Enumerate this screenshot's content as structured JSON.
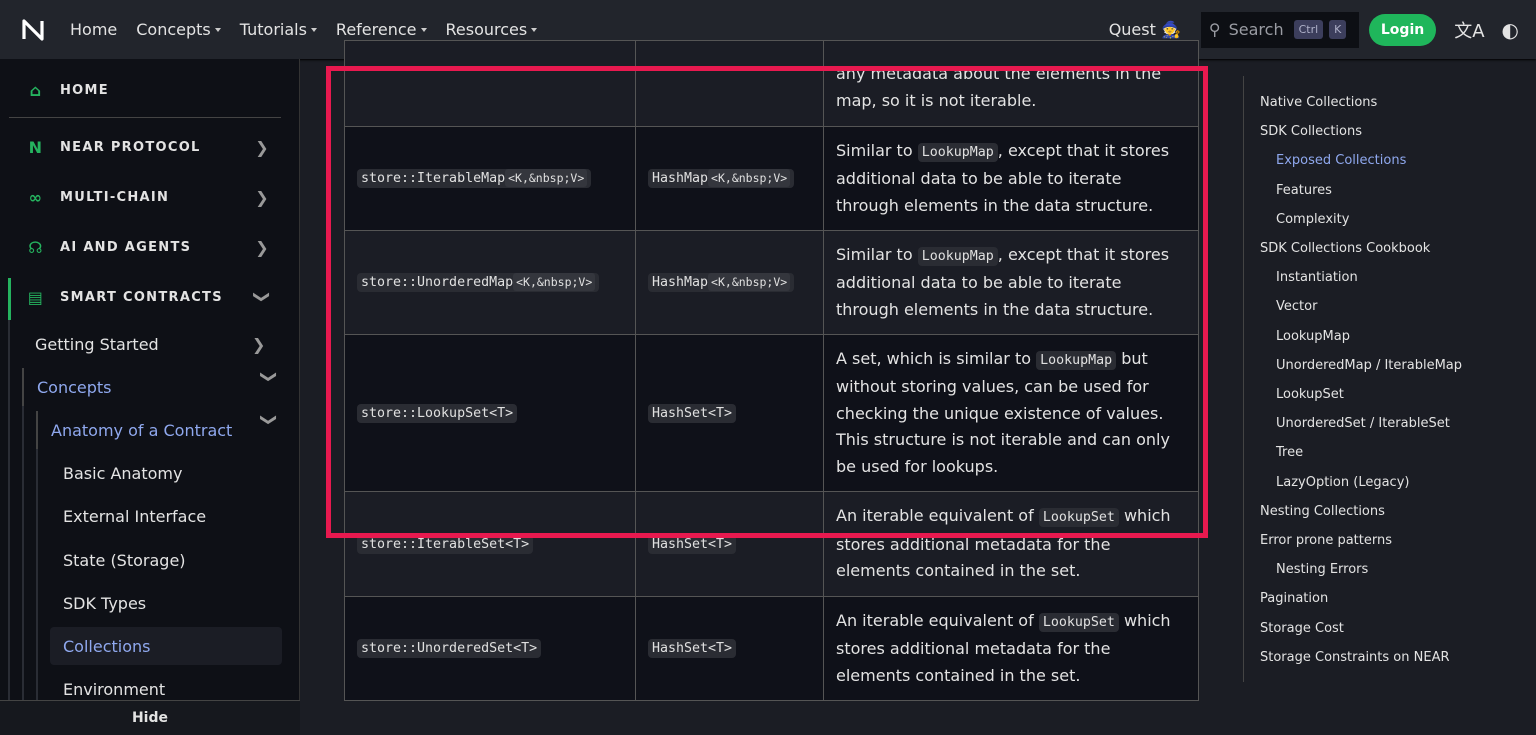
{
  "navbar": {
    "items": [
      "Home",
      "Concepts",
      "Tutorials",
      "Reference",
      "Resources"
    ],
    "quest": "Quest 🧙",
    "search_placeholder": "Search",
    "kbd": [
      "Ctrl",
      "K"
    ],
    "login": "Login"
  },
  "sidebar": {
    "categories": [
      "HOME",
      "NEAR PROTOCOL",
      "MULTI-CHAIN",
      "AI AND AGENTS",
      "SMART CONTRACTS"
    ],
    "items": [
      "Getting Started",
      "Concepts",
      "Anatomy of a Contract",
      "Basic Anatomy",
      "External Interface",
      "State (Storage)",
      "SDK Types",
      "Collections",
      "Environment"
    ],
    "hide": "Hide"
  },
  "table": {
    "rows": [
      {
        "c1": "",
        "c1g": "",
        "c2": "",
        "c2g": "",
        "desc": [
          "any metadata about the elements in the map, so it is not iterable."
        ]
      },
      {
        "c1": "store::IterableMap",
        "c1g": "<K,&nbsp;V>",
        "c2": "HashMap",
        "c2g": "<K,&nbsp;V>",
        "desc": [
          "Similar to ",
          "LookupMap",
          ", except that it stores additional data to be able to iterate through elements in the data structure."
        ]
      },
      {
        "c1": "store::UnorderedMap",
        "c1g": "<K,&nbsp;V>",
        "c2": "HashMap",
        "c2g": "<K,&nbsp;V>",
        "desc": [
          "Similar to ",
          "LookupMap",
          ", except that it stores additional data to be able to iterate through elements in the data structure."
        ]
      },
      {
        "c1": "store::LookupSet<T>",
        "c1g": "",
        "c2": "HashSet<T>",
        "c2g": "",
        "desc": [
          "A set, which is similar to ",
          "LookupMap",
          " but without storing values, can be used for checking the unique existence of values. This structure is not iterable and can only be used for lookups."
        ]
      },
      {
        "c1": "store::IterableSet<T>",
        "c1g": "",
        "c2": "HashSet<T>",
        "c2g": "",
        "desc": [
          "An iterable equivalent of ",
          "LookupSet",
          " which stores additional metadata for the elements contained in the set."
        ]
      },
      {
        "c1": "store::UnorderedSet<T>",
        "c1g": "",
        "c2": "HashSet<T>",
        "c2g": "",
        "desc": [
          "An iterable equivalent of ",
          "LookupSet",
          " which stores additional metadata for the elements contained in the set."
        ]
      }
    ]
  },
  "toc": [
    {
      "label": "Native Collections",
      "level": 1
    },
    {
      "label": "SDK Collections",
      "level": 1
    },
    {
      "label": "Exposed Collections",
      "level": 2,
      "active": true
    },
    {
      "label": "Features",
      "level": 2
    },
    {
      "label": "Complexity",
      "level": 2
    },
    {
      "label": "SDK Collections Cookbook",
      "level": 1
    },
    {
      "label": "Instantiation",
      "level": 2
    },
    {
      "label": "Vector",
      "level": 2
    },
    {
      "label": "LookupMap",
      "level": 2
    },
    {
      "label": "UnorderedMap / IterableMap",
      "level": 2
    },
    {
      "label": "LookupSet",
      "level": 2
    },
    {
      "label": "UnorderedSet / IterableSet",
      "level": 2
    },
    {
      "label": "Tree",
      "level": 2
    },
    {
      "label": "LazyOption (Legacy)",
      "level": 2
    },
    {
      "label": "Nesting Collections",
      "level": 1
    },
    {
      "label": "Error prone patterns",
      "level": 1
    },
    {
      "label": "Nesting Errors",
      "level": 2
    },
    {
      "label": "Pagination",
      "level": 1
    },
    {
      "label": "Storage Cost",
      "level": 1
    },
    {
      "label": "Storage Constraints on NEAR",
      "level": 1
    }
  ],
  "colors": {
    "accent": "#25b35f",
    "link": "#8fa8ee",
    "highlight": "#e8194f"
  }
}
